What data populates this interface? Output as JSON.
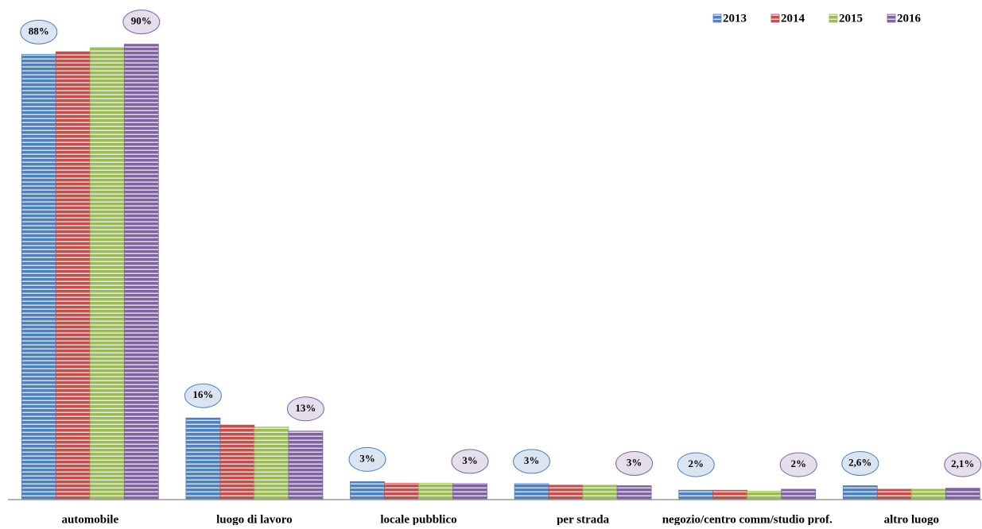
{
  "chart_data": {
    "type": "bar",
    "categories": [
      "automobile",
      "luogo di lavoro",
      "locale pubblico",
      "per strada",
      "negozio/centro comm/studio prof.",
      "altro luogo"
    ],
    "series": [
      {
        "name": "2013",
        "color": "#4f81bd",
        "values": [
          88,
          16,
          3.4,
          3,
          1.7,
          2.6
        ],
        "value_labels": [
          "88%",
          "16%",
          "3%",
          "3%",
          "2%",
          "2,6%"
        ]
      },
      {
        "name": "2014",
        "color": "#c0504d",
        "values": [
          88.5,
          14.6,
          3.1,
          2.7,
          1.7,
          1.9
        ]
      },
      {
        "name": "2015",
        "color": "#9bbb59",
        "values": [
          89.3,
          14.2,
          3.1,
          2.7,
          1.5,
          1.9
        ]
      },
      {
        "name": "2016",
        "color": "#8064a2",
        "values": [
          90,
          13.4,
          3,
          2.6,
          1.9,
          2.1
        ],
        "value_labels": [
          "90%",
          "13%",
          "3%",
          "3%",
          "2%",
          "2,1%"
        ]
      }
    ],
    "legend": "top-right"
  }
}
